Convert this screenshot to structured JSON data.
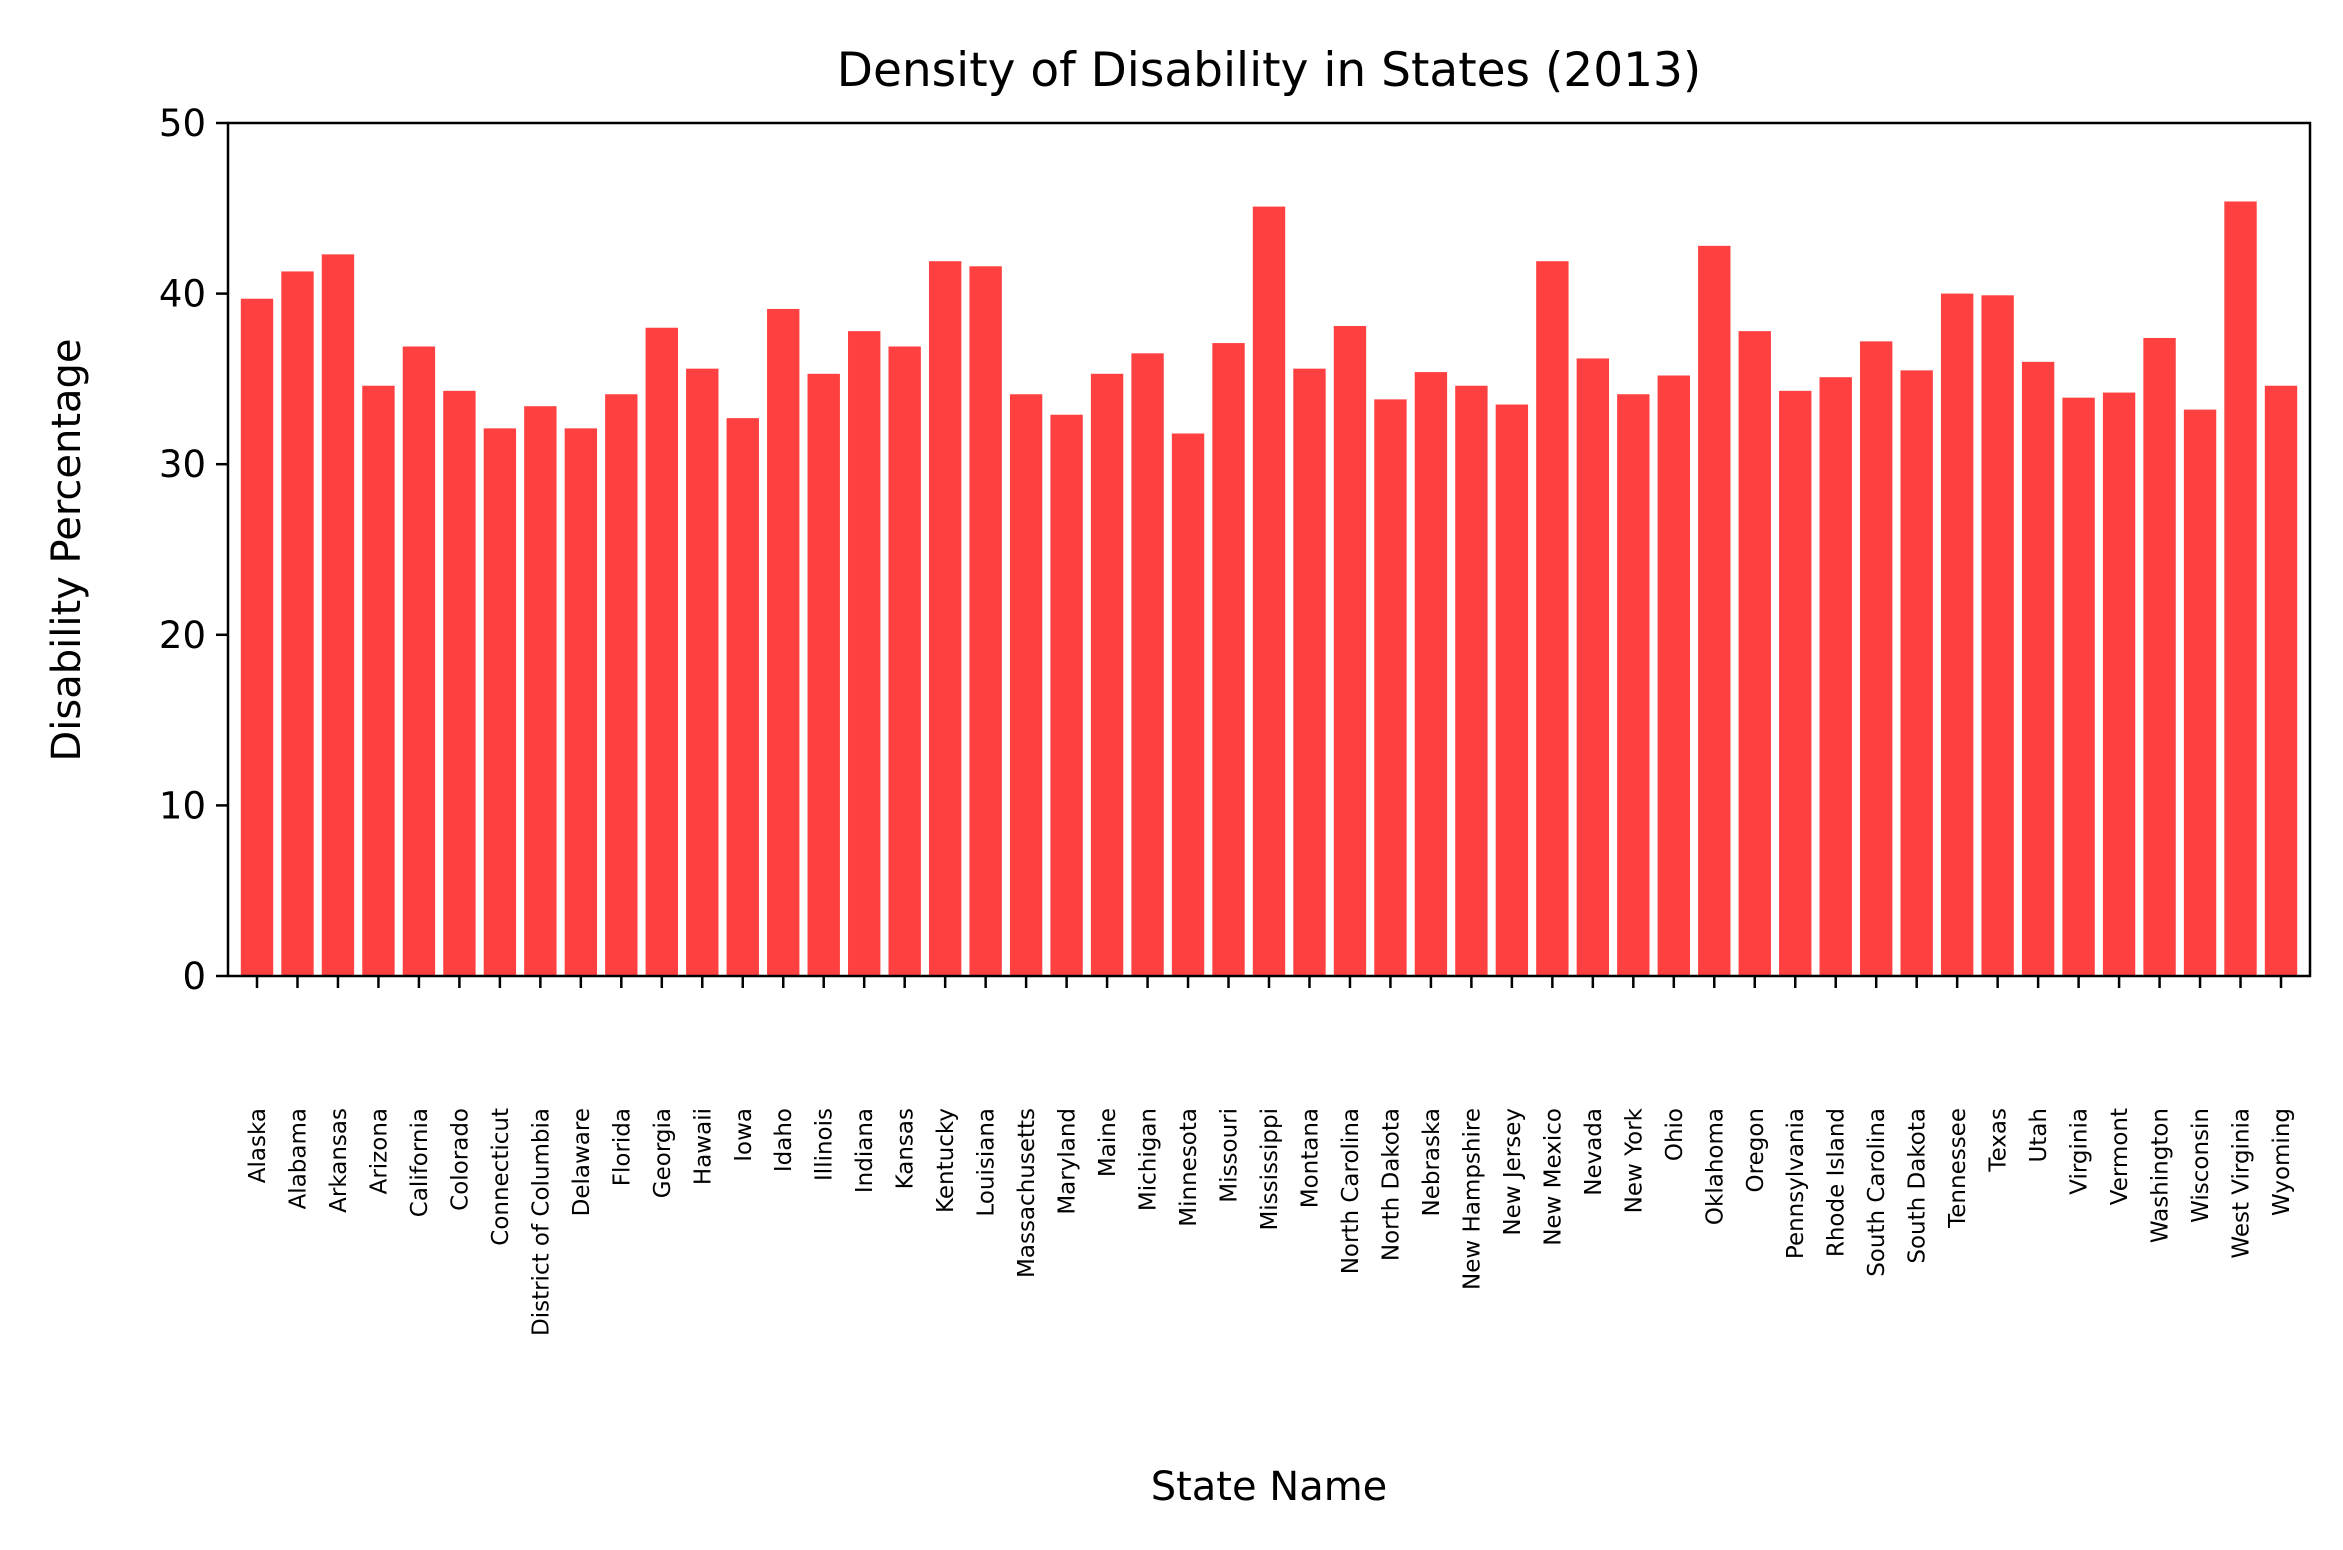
{
  "chart_data": {
    "type": "bar",
    "title": "Density of Disability in States (2013)",
    "xlabel": "State Name",
    "ylabel": "Disability Percentage",
    "ylim": [
      0,
      50
    ],
    "yticks": [
      0,
      10,
      20,
      30,
      40,
      50
    ],
    "bar_color": "#ff4040",
    "grid": false,
    "legend": "none",
    "categories": [
      "Alaska",
      "Alabama",
      "Arkansas",
      "Arizona",
      "California",
      "Colorado",
      "Connecticut",
      "District of Columbia",
      "Delaware",
      "Florida",
      "Georgia",
      "Hawaii",
      "Iowa",
      "Idaho",
      "Illinois",
      "Indiana",
      "Kansas",
      "Kentucky",
      "Louisiana",
      "Massachusetts",
      "Maryland",
      "Maine",
      "Michigan",
      "Minnesota",
      "Missouri",
      "Mississippi",
      "Montana",
      "North Carolina",
      "North Dakota",
      "Nebraska",
      "New Hampshire",
      "New Jersey",
      "New Mexico",
      "Nevada",
      "New York",
      "Ohio",
      "Oklahoma",
      "Oregon",
      "Pennsylvania",
      "Rhode Island",
      "South Carolina",
      "South Dakota",
      "Tennessee",
      "Texas",
      "Utah",
      "Virginia",
      "Vermont",
      "Washington",
      "Wisconsin",
      "West Virginia",
      "Wyoming"
    ],
    "values": [
      39.7,
      41.3,
      42.3,
      34.6,
      36.9,
      34.3,
      32.1,
      33.4,
      32.1,
      34.1,
      38.0,
      35.6,
      32.7,
      39.1,
      35.3,
      37.8,
      36.9,
      41.9,
      41.6,
      34.1,
      32.9,
      35.3,
      36.5,
      31.8,
      37.1,
      45.1,
      35.6,
      38.1,
      33.8,
      35.4,
      34.6,
      33.5,
      41.9,
      36.2,
      34.1,
      35.2,
      42.8,
      37.8,
      34.3,
      35.1,
      37.2,
      35.5,
      40.0,
      39.9,
      36.0,
      33.9,
      34.2,
      37.4,
      33.2,
      45.4,
      34.6
    ]
  }
}
